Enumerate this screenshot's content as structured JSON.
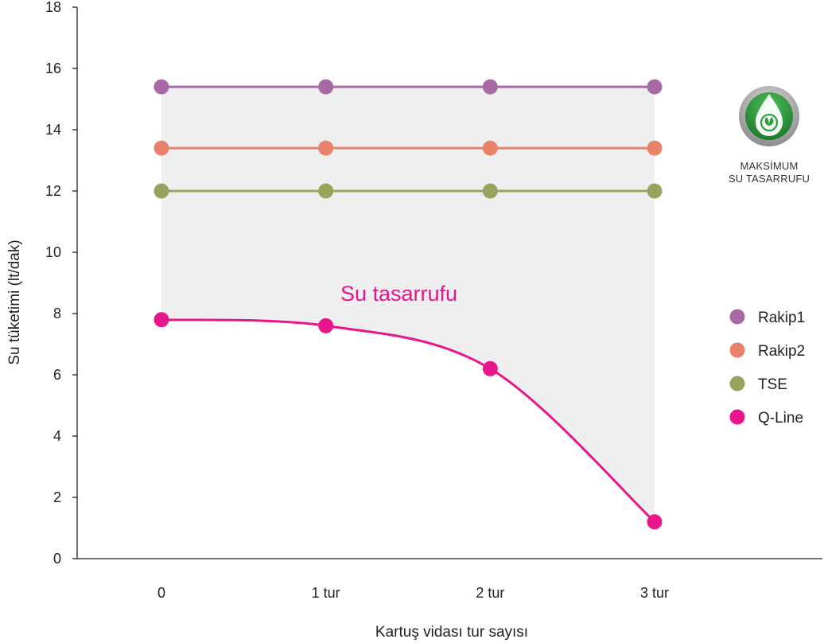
{
  "chart_data": {
    "type": "line",
    "title": "",
    "xlabel": "Kartuş vidası tur sayısı",
    "ylabel": "Su tüketimi (lt/dak)",
    "categories": [
      "0",
      "1 tur",
      "2 tur",
      "3 tur"
    ],
    "ylim": [
      0,
      18
    ],
    "yticks": [
      0,
      2,
      4,
      6,
      8,
      10,
      12,
      14,
      16,
      18
    ],
    "grid": false,
    "legend_position": "right",
    "series": [
      {
        "name": "Rakip1",
        "values": [
          15.4,
          15.4,
          15.4,
          15.4
        ],
        "color": "#a86aa4"
      },
      {
        "name": "Rakip2",
        "values": [
          13.4,
          13.4,
          13.4,
          13.4
        ],
        "color": "#e8826a"
      },
      {
        "name": "TSE",
        "values": [
          12.0,
          12.0,
          12.0,
          12.0
        ],
        "color": "#98a35e"
      },
      {
        "name": "Q-Line",
        "values": [
          7.8,
          7.6,
          6.2,
          1.2
        ],
        "color": "#e8168c",
        "smooth": true
      }
    ],
    "annotations": [
      {
        "text": "Su tasarrufu",
        "color": "#e8168c"
      }
    ],
    "shaded_region": {
      "between": [
        "Rakip1",
        "Q-Line"
      ],
      "color": "#efefef"
    }
  },
  "badge": {
    "line1": "MAKSİMUM",
    "line2": "SU TASARRUFU",
    "icon": "water-drop-leaf-icon",
    "colors": {
      "outer": "#9b9b9b",
      "inner": "#2e9e3e",
      "drop": "#ffffff"
    }
  }
}
